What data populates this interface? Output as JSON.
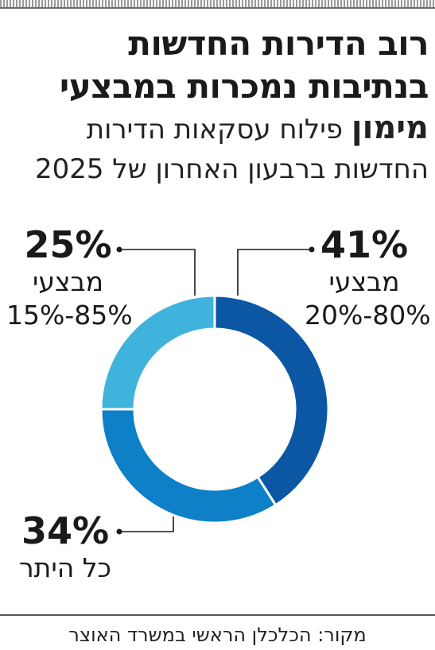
{
  "headline": {
    "line1": "רוב הדירות החדשות",
    "line2": "בנתיבות נמכרות במבצעי"
  },
  "subtitle": {
    "bold": "מימון",
    "line1_rest": "פילוח עסקאות הדירות",
    "line2": "החדשות ברבעון האחרון של 2025"
  },
  "chart_data": {
    "type": "pie",
    "variant": "donut",
    "start": "12 o'clock",
    "direction": "clockwise",
    "slices": [
      {
        "value": 41,
        "value_label": "41%",
        "line1": "מבצעי",
        "line2": "20%-80%",
        "color": "#0b57a4"
      },
      {
        "value": 34,
        "value_label": "34%",
        "line1": "כל היתר",
        "line2": "",
        "color": "#0d80c8"
      },
      {
        "value": 25,
        "value_label": "25%",
        "line1": "מבצעי",
        "line2": "15%-85%",
        "color": "#40b3dc"
      }
    ]
  },
  "source": "מקור: הכלכלן הראשי במשרד האוצר"
}
